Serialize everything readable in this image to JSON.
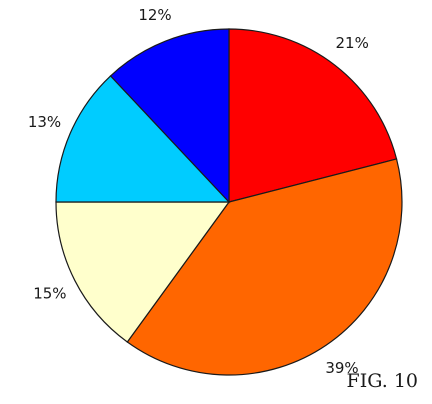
{
  "caption": "FIG. 10",
  "chart_data": {
    "type": "pie",
    "title": "",
    "start": "12 o'clock",
    "direction": "clockwise",
    "slices": [
      {
        "value": 21,
        "label": "21%",
        "color": "#ff0000"
      },
      {
        "value": 39,
        "label": "39%",
        "color": "#ff6600"
      },
      {
        "value": 15,
        "label": "15%",
        "color": "#ffffcc"
      },
      {
        "value": 13,
        "label": "13%",
        "color": "#00ccff"
      },
      {
        "value": 12,
        "label": "12%",
        "color": "#0000ff"
      }
    ]
  }
}
